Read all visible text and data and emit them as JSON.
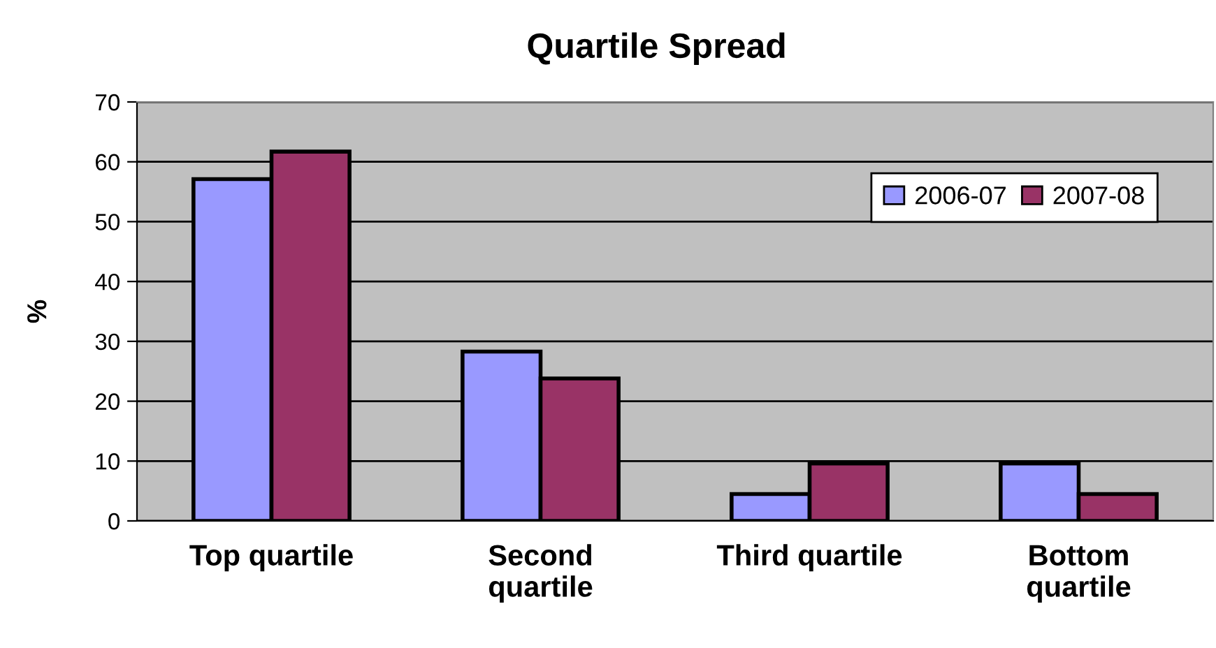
{
  "chart_data": {
    "type": "bar",
    "title": "Quartile Spread",
    "ylabel": "%",
    "categories": [
      "Top quartile",
      "Second\nquartile",
      "Third quartile",
      "Bottom\nquartile"
    ],
    "series": [
      {
        "name": "2006-07",
        "color": "#9999ff",
        "values": [
          57.1,
          28.3,
          4.5,
          9.6
        ]
      },
      {
        "name": "2007-08",
        "color": "#993366",
        "values": [
          61.7,
          23.8,
          9.6,
          4.5
        ]
      }
    ],
    "ylim": [
      0,
      70
    ],
    "yticks": [
      0,
      10,
      20,
      30,
      40,
      50,
      60,
      70
    ],
    "grid": "y",
    "legend": "top right"
  }
}
